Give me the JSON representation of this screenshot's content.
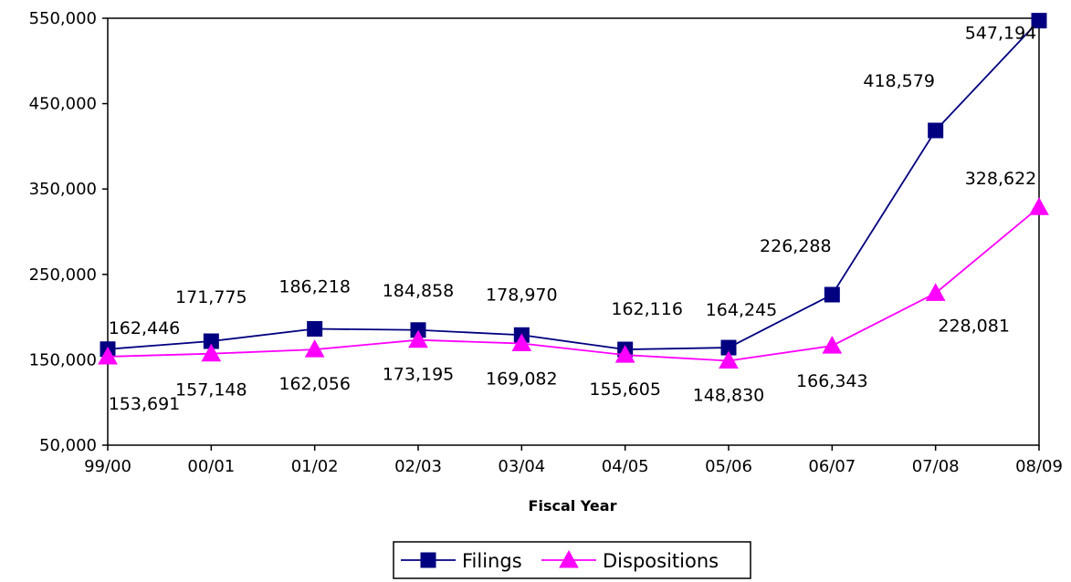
{
  "chart_data": {
    "type": "line",
    "xlabel": "Fiscal Year",
    "ylabel": "",
    "categories": [
      "99/00",
      "00/01",
      "01/02",
      "02/03",
      "03/04",
      "04/05",
      "05/06",
      "06/07",
      "07/08",
      "08/09"
    ],
    "ylim": [
      50000,
      550000
    ],
    "yticks": [
      50000,
      150000,
      250000,
      350000,
      450000,
      550000
    ],
    "ytick_labels": [
      "50,000",
      "150,000",
      "250,000",
      "350,000",
      "450,000",
      "550,000"
    ],
    "grid": false,
    "legend_position": "bottom-center",
    "series": [
      {
        "name": "Filings",
        "color": "#000080",
        "marker": "square",
        "values": [
          162446,
          171775,
          186218,
          184858,
          178970,
          162116,
          164245,
          226288,
          418579,
          547194
        ],
        "labels": [
          "162,446",
          "171,775",
          "186,218",
          "184,858",
          "178,970",
          "162,116",
          "164,245",
          "226,288",
          "418,579",
          "547,194"
        ]
      },
      {
        "name": "Dispositions",
        "color": "#FF00FF",
        "marker": "triangle",
        "values": [
          153691,
          157148,
          162056,
          173195,
          169082,
          155605,
          148830,
          166343,
          228081,
          328622
        ],
        "labels": [
          "153,691",
          "157,148",
          "162,056",
          "173,195",
          "169,082",
          "155,605",
          "148,830",
          "166,343",
          "228,081",
          "328,622"
        ]
      }
    ]
  }
}
